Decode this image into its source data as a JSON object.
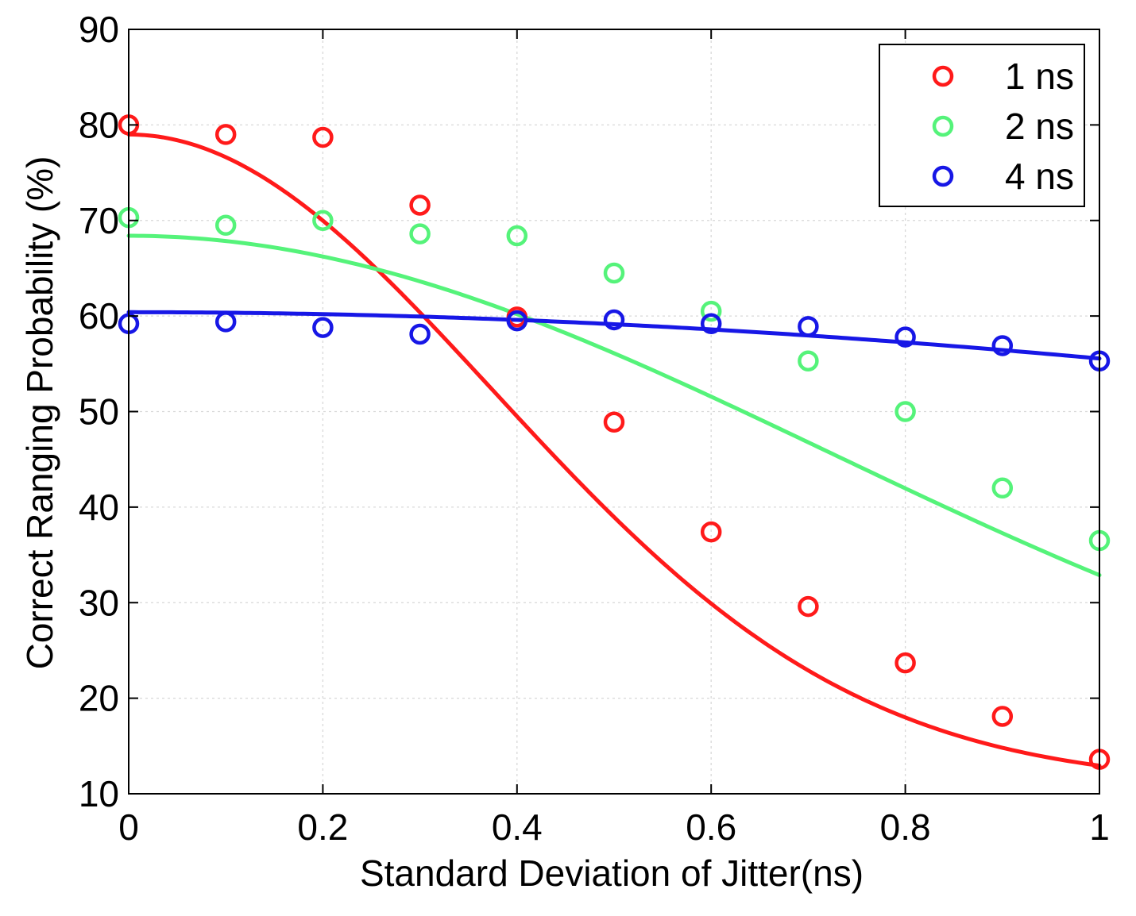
{
  "chart_data": {
    "type": "line",
    "title": "",
    "xlabel": "Standard Deviation of Jitter(ns)",
    "ylabel": "Correct Ranging Probability (%)",
    "xlim": [
      0,
      1
    ],
    "ylim": [
      10,
      90
    ],
    "grid": true,
    "legend_position": "top-right",
    "x_ticks": [
      0,
      0.2,
      0.4,
      0.6,
      0.8,
      1
    ],
    "x_tick_labels": [
      "0",
      "0.2",
      "0.4",
      "0.6",
      "0.8",
      "1"
    ],
    "y_ticks": [
      10,
      20,
      30,
      40,
      50,
      60,
      70,
      80,
      90
    ],
    "y_tick_labels": [
      "10",
      "20",
      "30",
      "40",
      "50",
      "60",
      "70",
      "80",
      "90"
    ],
    "x": [
      0,
      0.1,
      0.2,
      0.3,
      0.4,
      0.5,
      0.6,
      0.7,
      0.8,
      0.9,
      1.0
    ],
    "series": [
      {
        "name": "1 ns",
        "color": "#ff1a1a",
        "marker": "circle",
        "values": [
          80.0,
          79.0,
          78.7,
          71.6,
          59.9,
          48.9,
          37.4,
          29.6,
          23.7,
          18.1,
          13.6
        ],
        "fit": {
          "type": "gaussian",
          "offset": 11.0,
          "amplitude": 68.0,
          "sigma": 0.375
        }
      },
      {
        "name": "2 ns",
        "color": "#55f37a",
        "marker": "circle",
        "values": [
          70.3,
          69.5,
          70.0,
          68.6,
          68.4,
          64.5,
          60.5,
          55.3,
          50.0,
          42.0,
          36.5
        ],
        "fit": {
          "type": "gaussian",
          "offset": 11.0,
          "amplitude": 57.4,
          "sigma": 0.72
        }
      },
      {
        "name": "4 ns",
        "color": "#1717e6",
        "marker": "circle",
        "values": [
          59.2,
          59.4,
          58.8,
          58.1,
          59.5,
          59.6,
          59.2,
          58.9,
          57.8,
          56.9,
          55.3
        ],
        "fit": {
          "type": "gaussian",
          "offset": 11.0,
          "amplitude": 49.4,
          "sigma": 2.2
        }
      }
    ]
  }
}
